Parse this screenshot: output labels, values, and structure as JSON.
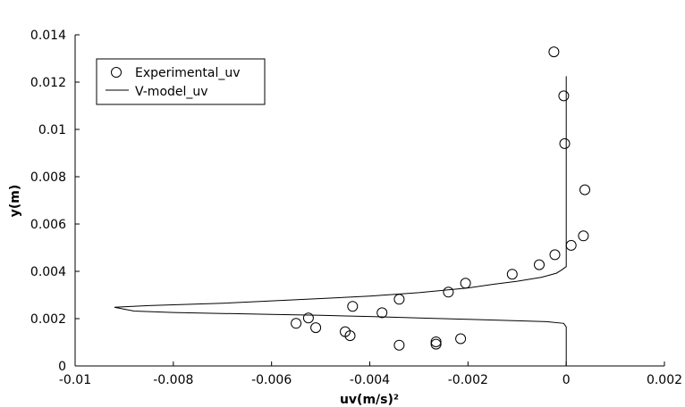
{
  "chart_data": {
    "type": "scatter",
    "xlabel": "uv(m/s)²",
    "ylabel": "y(m)",
    "xlim": [
      -0.01,
      0.002
    ],
    "ylim": [
      0,
      0.014
    ],
    "x_ticks": [
      "-0.01",
      "-0.008",
      "-0.006",
      "-0.004",
      "-0.002",
      "0",
      "0.002"
    ],
    "x_tick_values": [
      -0.01,
      -0.008,
      -0.006,
      -0.004,
      -0.002,
      0,
      0.002
    ],
    "y_ticks": [
      "0",
      "0.002",
      "0.004",
      "0.006",
      "0.008",
      "0.01",
      "0.012",
      "0.014"
    ],
    "y_tick_values": [
      0,
      0.002,
      0.004,
      0.006,
      0.008,
      0.01,
      0.012,
      0.014
    ],
    "grid": false,
    "legend_position": "top-left",
    "series": [
      {
        "name": "Experimental_uv",
        "kind": "markers",
        "marker": "open-circle",
        "points": [
          [
            -0.00025,
            0.01328
          ],
          [
            -5e-05,
            0.01142
          ],
          [
            -3e-05,
            0.0094
          ],
          [
            0.00038,
            0.00745
          ],
          [
            0.00035,
            0.0055
          ],
          [
            0.0001,
            0.0051
          ],
          [
            -0.00023,
            0.0047
          ],
          [
            -0.00055,
            0.00428
          ],
          [
            -0.0011,
            0.00388
          ],
          [
            -0.00205,
            0.0035
          ],
          [
            -0.0024,
            0.00312
          ],
          [
            -0.0034,
            0.00282
          ],
          [
            -0.00375,
            0.00225
          ],
          [
            -0.00435,
            0.00252
          ],
          [
            -0.0044,
            0.00128
          ],
          [
            -0.0045,
            0.00145
          ],
          [
            -0.00525,
            0.00203
          ],
          [
            -0.0051,
            0.00162
          ],
          [
            -0.0055,
            0.0018
          ],
          [
            -0.0034,
            0.00088
          ],
          [
            -0.00265,
            0.00092
          ],
          [
            -0.00265,
            0.00102
          ],
          [
            -0.00215,
            0.00115
          ]
        ]
      },
      {
        "name": "V-model_uv",
        "kind": "line",
        "points": [
          [
            0.0,
            0.01225
          ],
          [
            0.0,
            0.0042
          ],
          [
            -0.0001,
            0.00405
          ],
          [
            -0.0002,
            0.00392
          ],
          [
            -0.0005,
            0.00375
          ],
          [
            -0.001,
            0.00358
          ],
          [
            -0.0015,
            0.00345
          ],
          [
            -0.002,
            0.0033
          ],
          [
            -0.003,
            0.0031
          ],
          [
            -0.004,
            0.00295
          ],
          [
            -0.005,
            0.00285
          ],
          [
            -0.006,
            0.00275
          ],
          [
            -0.007,
            0.00265
          ],
          [
            -0.0085,
            0.00255
          ],
          [
            -0.0092,
            0.00248
          ],
          [
            -0.0088,
            0.00232
          ],
          [
            -0.008,
            0.00226
          ],
          [
            -0.007,
            0.00222
          ],
          [
            -0.006,
            0.00218
          ],
          [
            -0.005,
            0.00214
          ],
          [
            -0.004,
            0.00209
          ],
          [
            -0.003,
            0.00203
          ],
          [
            -0.002,
            0.00197
          ],
          [
            -0.001,
            0.00191
          ],
          [
            -0.0004,
            0.00187
          ],
          [
            -5e-05,
            0.0018
          ],
          [
            0.0,
            0.00165
          ],
          [
            0.0,
            0.0
          ]
        ]
      }
    ]
  }
}
